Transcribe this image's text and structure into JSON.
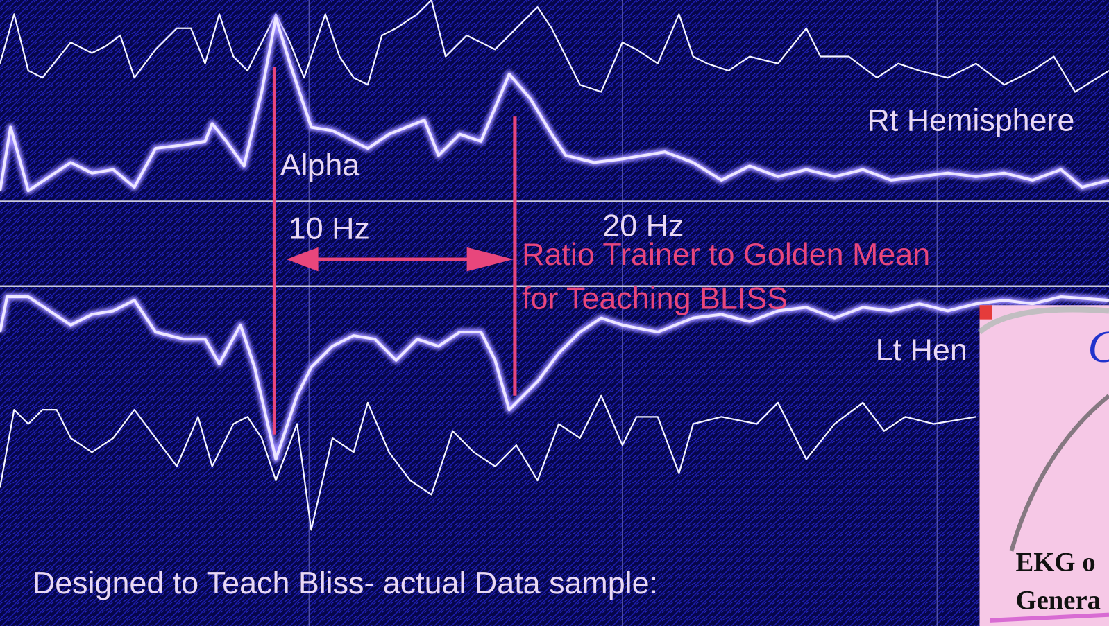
{
  "annotations": {
    "rt_hemisphere": "Rt Hemisphere",
    "alpha": "Alpha",
    "hz10": "10 Hz",
    "hz20": "20 Hz",
    "ratio_line1": "Ratio Trainer to Golden Mean",
    "ratio_line2": "for Teaching BLISS",
    "lt_hemisphere": "Lt Hen",
    "caption": "Designed to Teach Bliss- actual Data sample:"
  },
  "inset": {
    "heading": "C",
    "line1": "EKG o",
    "line2": "Genera"
  }
}
